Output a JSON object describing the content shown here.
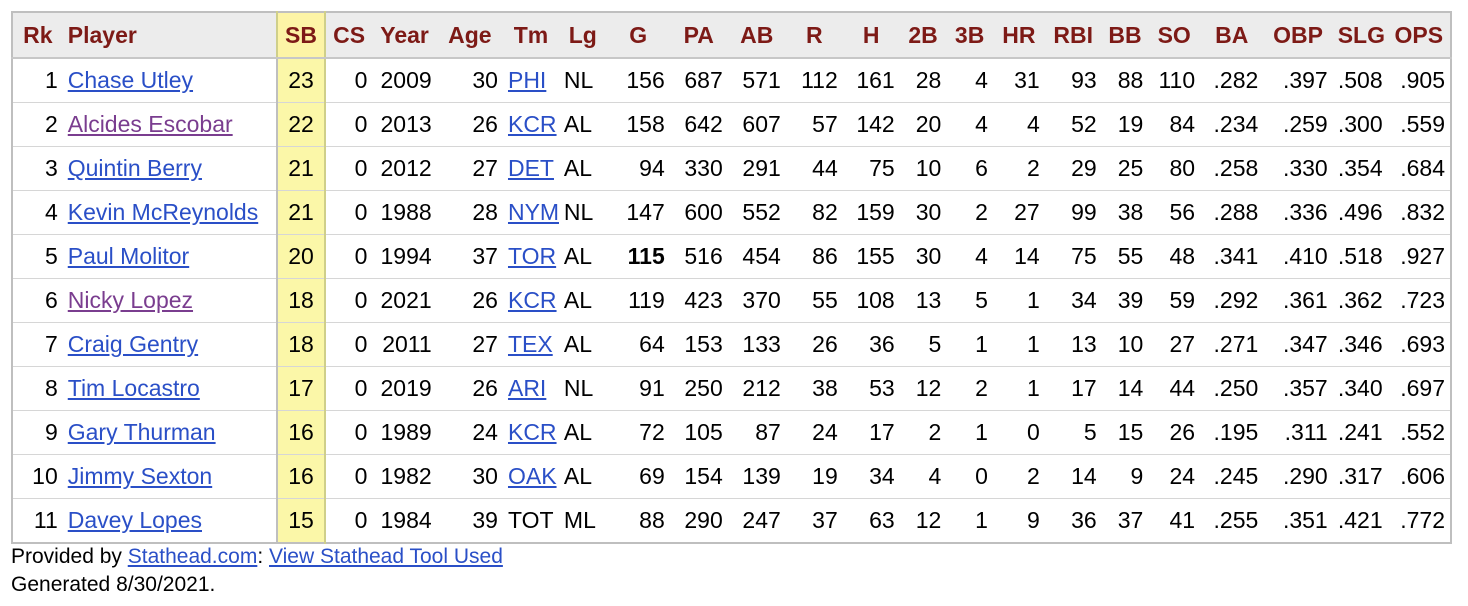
{
  "columns": [
    "Rk",
    "Player",
    "SB",
    "CS",
    "Year",
    "Age",
    "Tm",
    "Lg",
    "G",
    "PA",
    "AB",
    "R",
    "H",
    "2B",
    "3B",
    "HR",
    "RBI",
    "BB",
    "SO",
    "BA",
    "OBP",
    "SLG",
    "OPS"
  ],
  "rows": [
    {
      "rk": "1",
      "player": "Chase Utley",
      "visited": false,
      "sb": "23",
      "cs": "0",
      "year": "2009",
      "age": "30",
      "tm": "PHI",
      "tm_link": true,
      "lg": "NL",
      "g": "156",
      "g_bold": false,
      "pa": "687",
      "ab": "571",
      "r": "112",
      "h": "161",
      "2b": "28",
      "3b": "4",
      "hr": "31",
      "rbi": "93",
      "bb": "88",
      "so": "110",
      "ba": ".282",
      "obp": ".397",
      "slg": ".508",
      "ops": ".905"
    },
    {
      "rk": "2",
      "player": "Alcides Escobar",
      "visited": true,
      "sb": "22",
      "cs": "0",
      "year": "2013",
      "age": "26",
      "tm": "KCR",
      "tm_link": true,
      "lg": "AL",
      "g": "158",
      "g_bold": false,
      "pa": "642",
      "ab": "607",
      "r": "57",
      "h": "142",
      "2b": "20",
      "3b": "4",
      "hr": "4",
      "rbi": "52",
      "bb": "19",
      "so": "84",
      "ba": ".234",
      "obp": ".259",
      "slg": ".300",
      "ops": ".559"
    },
    {
      "rk": "3",
      "player": "Quintin Berry",
      "visited": false,
      "sb": "21",
      "cs": "0",
      "year": "2012",
      "age": "27",
      "tm": "DET",
      "tm_link": true,
      "lg": "AL",
      "g": "94",
      "g_bold": false,
      "pa": "330",
      "ab": "291",
      "r": "44",
      "h": "75",
      "2b": "10",
      "3b": "6",
      "hr": "2",
      "rbi": "29",
      "bb": "25",
      "so": "80",
      "ba": ".258",
      "obp": ".330",
      "slg": ".354",
      "ops": ".684"
    },
    {
      "rk": "4",
      "player": "Kevin McReynolds",
      "visited": false,
      "sb": "21",
      "cs": "0",
      "year": "1988",
      "age": "28",
      "tm": "NYM",
      "tm_link": true,
      "lg": "NL",
      "g": "147",
      "g_bold": false,
      "pa": "600",
      "ab": "552",
      "r": "82",
      "h": "159",
      "2b": "30",
      "3b": "2",
      "hr": "27",
      "rbi": "99",
      "bb": "38",
      "so": "56",
      "ba": ".288",
      "obp": ".336",
      "slg": ".496",
      "ops": ".832"
    },
    {
      "rk": "5",
      "player": "Paul Molitor",
      "visited": false,
      "sb": "20",
      "cs": "0",
      "year": "1994",
      "age": "37",
      "tm": "TOR",
      "tm_link": true,
      "lg": "AL",
      "g": "115",
      "g_bold": true,
      "pa": "516",
      "ab": "454",
      "r": "86",
      "h": "155",
      "2b": "30",
      "3b": "4",
      "hr": "14",
      "rbi": "75",
      "bb": "55",
      "so": "48",
      "ba": ".341",
      "obp": ".410",
      "slg": ".518",
      "ops": ".927"
    },
    {
      "rk": "6",
      "player": "Nicky Lopez",
      "visited": true,
      "sb": "18",
      "cs": "0",
      "year": "2021",
      "age": "26",
      "tm": "KCR",
      "tm_link": true,
      "lg": "AL",
      "g": "119",
      "g_bold": false,
      "pa": "423",
      "ab": "370",
      "r": "55",
      "h": "108",
      "2b": "13",
      "3b": "5",
      "hr": "1",
      "rbi": "34",
      "bb": "39",
      "so": "59",
      "ba": ".292",
      "obp": ".361",
      "slg": ".362",
      "ops": ".723"
    },
    {
      "rk": "7",
      "player": "Craig Gentry",
      "visited": false,
      "sb": "18",
      "cs": "0",
      "year": "2011",
      "age": "27",
      "tm": "TEX",
      "tm_link": true,
      "lg": "AL",
      "g": "64",
      "g_bold": false,
      "pa": "153",
      "ab": "133",
      "r": "26",
      "h": "36",
      "2b": "5",
      "3b": "1",
      "hr": "1",
      "rbi": "13",
      "bb": "10",
      "so": "27",
      "ba": ".271",
      "obp": ".347",
      "slg": ".346",
      "ops": ".693"
    },
    {
      "rk": "8",
      "player": "Tim Locastro",
      "visited": false,
      "sb": "17",
      "cs": "0",
      "year": "2019",
      "age": "26",
      "tm": "ARI",
      "tm_link": true,
      "lg": "NL",
      "g": "91",
      "g_bold": false,
      "pa": "250",
      "ab": "212",
      "r": "38",
      "h": "53",
      "2b": "12",
      "3b": "2",
      "hr": "1",
      "rbi": "17",
      "bb": "14",
      "so": "44",
      "ba": ".250",
      "obp": ".357",
      "slg": ".340",
      "ops": ".697"
    },
    {
      "rk": "9",
      "player": "Gary Thurman",
      "visited": false,
      "sb": "16",
      "cs": "0",
      "year": "1989",
      "age": "24",
      "tm": "KCR",
      "tm_link": true,
      "lg": "AL",
      "g": "72",
      "g_bold": false,
      "pa": "105",
      "ab": "87",
      "r": "24",
      "h": "17",
      "2b": "2",
      "3b": "1",
      "hr": "0",
      "rbi": "5",
      "bb": "15",
      "so": "26",
      "ba": ".195",
      "obp": ".311",
      "slg": ".241",
      "ops": ".552"
    },
    {
      "rk": "10",
      "player": "Jimmy Sexton",
      "visited": false,
      "sb": "16",
      "cs": "0",
      "year": "1982",
      "age": "30",
      "tm": "OAK",
      "tm_link": true,
      "lg": "AL",
      "g": "69",
      "g_bold": false,
      "pa": "154",
      "ab": "139",
      "r": "19",
      "h": "34",
      "2b": "4",
      "3b": "0",
      "hr": "2",
      "rbi": "14",
      "bb": "9",
      "so": "24",
      "ba": ".245",
      "obp": ".290",
      "slg": ".317",
      "ops": ".606"
    },
    {
      "rk": "11",
      "player": "Davey Lopes",
      "visited": false,
      "sb": "15",
      "cs": "0",
      "year": "1984",
      "age": "39",
      "tm": "TOT",
      "tm_link": false,
      "lg": "ML",
      "g": "88",
      "g_bold": false,
      "pa": "290",
      "ab": "247",
      "r": "37",
      "h": "63",
      "2b": "12",
      "3b": "1",
      "hr": "9",
      "rbi": "36",
      "bb": "37",
      "so": "41",
      "ba": ".255",
      "obp": ".351",
      "slg": ".421",
      "ops": ".772"
    }
  ],
  "footer": {
    "provided_by": "Provided by ",
    "stathead_link": "Stathead.com",
    "separator": ": ",
    "tool_link": "View Stathead Tool Used",
    "generated": "Generated 8/30/2021."
  },
  "colors": {
    "header_text": "#7d1a16",
    "link": "#2a4fc7",
    "visited_link": "#7a3d8f",
    "sort_highlight": "#fbf7a8"
  }
}
